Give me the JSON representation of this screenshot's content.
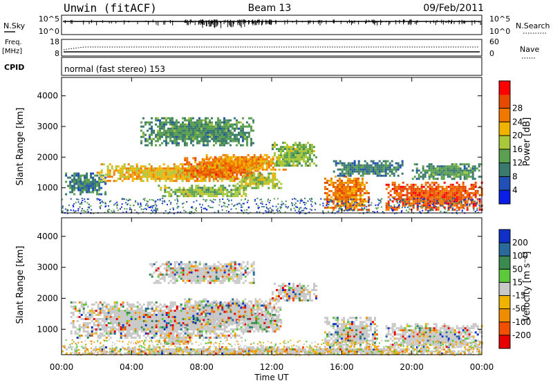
{
  "header": {
    "station": "Unwin (fitACF)",
    "beam": "Beam 13",
    "date": "09/Feb/2011"
  },
  "strips": {
    "nsky_label": "N.Sky",
    "nsky_ticks": [
      "10^5",
      "10^0"
    ],
    "nsearch_label": "N.Search",
    "freq_label": "Freq.",
    "freq_unit": "[MHz]",
    "freq_ticks": [
      "18",
      "8"
    ],
    "nave_ticks": [
      "60",
      "0"
    ],
    "nave_label": "Nave",
    "cpid_label": "CPID",
    "cpid_value": "normal (fast stereo) 153"
  },
  "chart_data": [
    {
      "type": "heatmap",
      "name": "power",
      "ylabel": "Slant Range [km]",
      "yticks": [
        1000,
        2000,
        3000,
        4000
      ],
      "ylim": [
        180,
        4600
      ],
      "xticks": [
        "00:00",
        "04:00",
        "08:00",
        "12:00",
        "16:00",
        "20:00",
        "00:00"
      ],
      "xlim_hours": [
        0,
        24
      ],
      "colorbar": {
        "label": "Power [dB]",
        "ticks": [
          "4",
          "8",
          "12",
          "16",
          "20",
          "24",
          "28"
        ],
        "colors": [
          "#0a1ee6",
          "#2050b4",
          "#3a7a6e",
          "#5aa050",
          "#a8c83a",
          "#f0b400",
          "#f07800",
          "#e64a00",
          "#ff0000"
        ]
      },
      "regions": [
        {
          "t0": 0.2,
          "t1": 2.5,
          "r0": 800,
          "r1": 1500,
          "level": 8
        },
        {
          "t0": 2.0,
          "t1": 10.5,
          "r0": 1200,
          "r1": 1800,
          "level": 20
        },
        {
          "t0": 7.0,
          "t1": 11.5,
          "r0": 1300,
          "r1": 2000,
          "level": 26
        },
        {
          "t0": 8.0,
          "t1": 12.8,
          "r0": 1600,
          "r1": 2100,
          "level": 22
        },
        {
          "t0": 12.0,
          "t1": 14.5,
          "r0": 1700,
          "r1": 2500,
          "level": 14
        },
        {
          "t0": 4.5,
          "t1": 11.0,
          "r0": 2400,
          "r1": 3300,
          "level": 10
        },
        {
          "t0": 5.5,
          "t1": 10.5,
          "r0": 700,
          "r1": 1100,
          "level": 14
        },
        {
          "t0": 10.0,
          "t1": 12.5,
          "r0": 1000,
          "r1": 1500,
          "level": 16
        },
        {
          "t0": 15.0,
          "t1": 17.5,
          "r0": 300,
          "r1": 1400,
          "level": 24
        },
        {
          "t0": 15.5,
          "t1": 19.5,
          "r0": 1400,
          "r1": 1900,
          "level": 8
        },
        {
          "t0": 18.5,
          "t1": 24.0,
          "r0": 300,
          "r1": 1200,
          "level": 27
        },
        {
          "t0": 20.0,
          "t1": 24.0,
          "r0": 1300,
          "r1": 1800,
          "level": 10
        }
      ]
    },
    {
      "type": "heatmap",
      "name": "velocity",
      "ylabel": "Slant Range [km]",
      "yticks": [
        1000,
        2000,
        3000,
        4000
      ],
      "ylim": [
        180,
        4600
      ],
      "xticks": [
        "00:00",
        "04:00",
        "08:00",
        "12:00",
        "16:00",
        "20:00",
        "00:00"
      ],
      "xlim_hours": [
        0,
        24
      ],
      "xlabel": "Time UT",
      "colorbar": {
        "label": "Velocity [m s⁻¹]",
        "ticks": [
          "200",
          "100",
          "50",
          "15",
          "-15",
          "-50",
          "-100",
          "-200"
        ],
        "colors": [
          "#1030c8",
          "#2a6a9a",
          "#3a8a50",
          "#5cc83c",
          "#c8c8c8",
          "#f0b400",
          "#f08c00",
          "#f05000",
          "#e60000"
        ]
      },
      "regions": [
        {
          "t0": 0.5,
          "t1": 10.5,
          "r0": 700,
          "r1": 1900,
          "level": 0
        },
        {
          "t0": 7.0,
          "t1": 12.5,
          "r0": 1100,
          "r1": 2000,
          "level": 0
        },
        {
          "t0": 5.0,
          "t1": 11.0,
          "r0": 2500,
          "r1": 3200,
          "level": 0
        },
        {
          "t0": 10.0,
          "t1": 12.5,
          "r0": 900,
          "r1": 1500,
          "level": 30
        },
        {
          "t0": 12.0,
          "t1": 14.5,
          "r0": 1900,
          "r1": 2500,
          "level": 0
        },
        {
          "t0": 5.5,
          "t1": 7.5,
          "r0": 500,
          "r1": 900,
          "level": -60
        },
        {
          "t0": 15.0,
          "t1": 18.0,
          "r0": 400,
          "r1": 1400,
          "level": 0
        },
        {
          "t0": 18.5,
          "t1": 24.0,
          "r0": 400,
          "r1": 1200,
          "level": 0
        },
        {
          "t0": 0.0,
          "t1": 24.0,
          "r0": 200,
          "r1": 450,
          "level": -40
        }
      ]
    }
  ]
}
